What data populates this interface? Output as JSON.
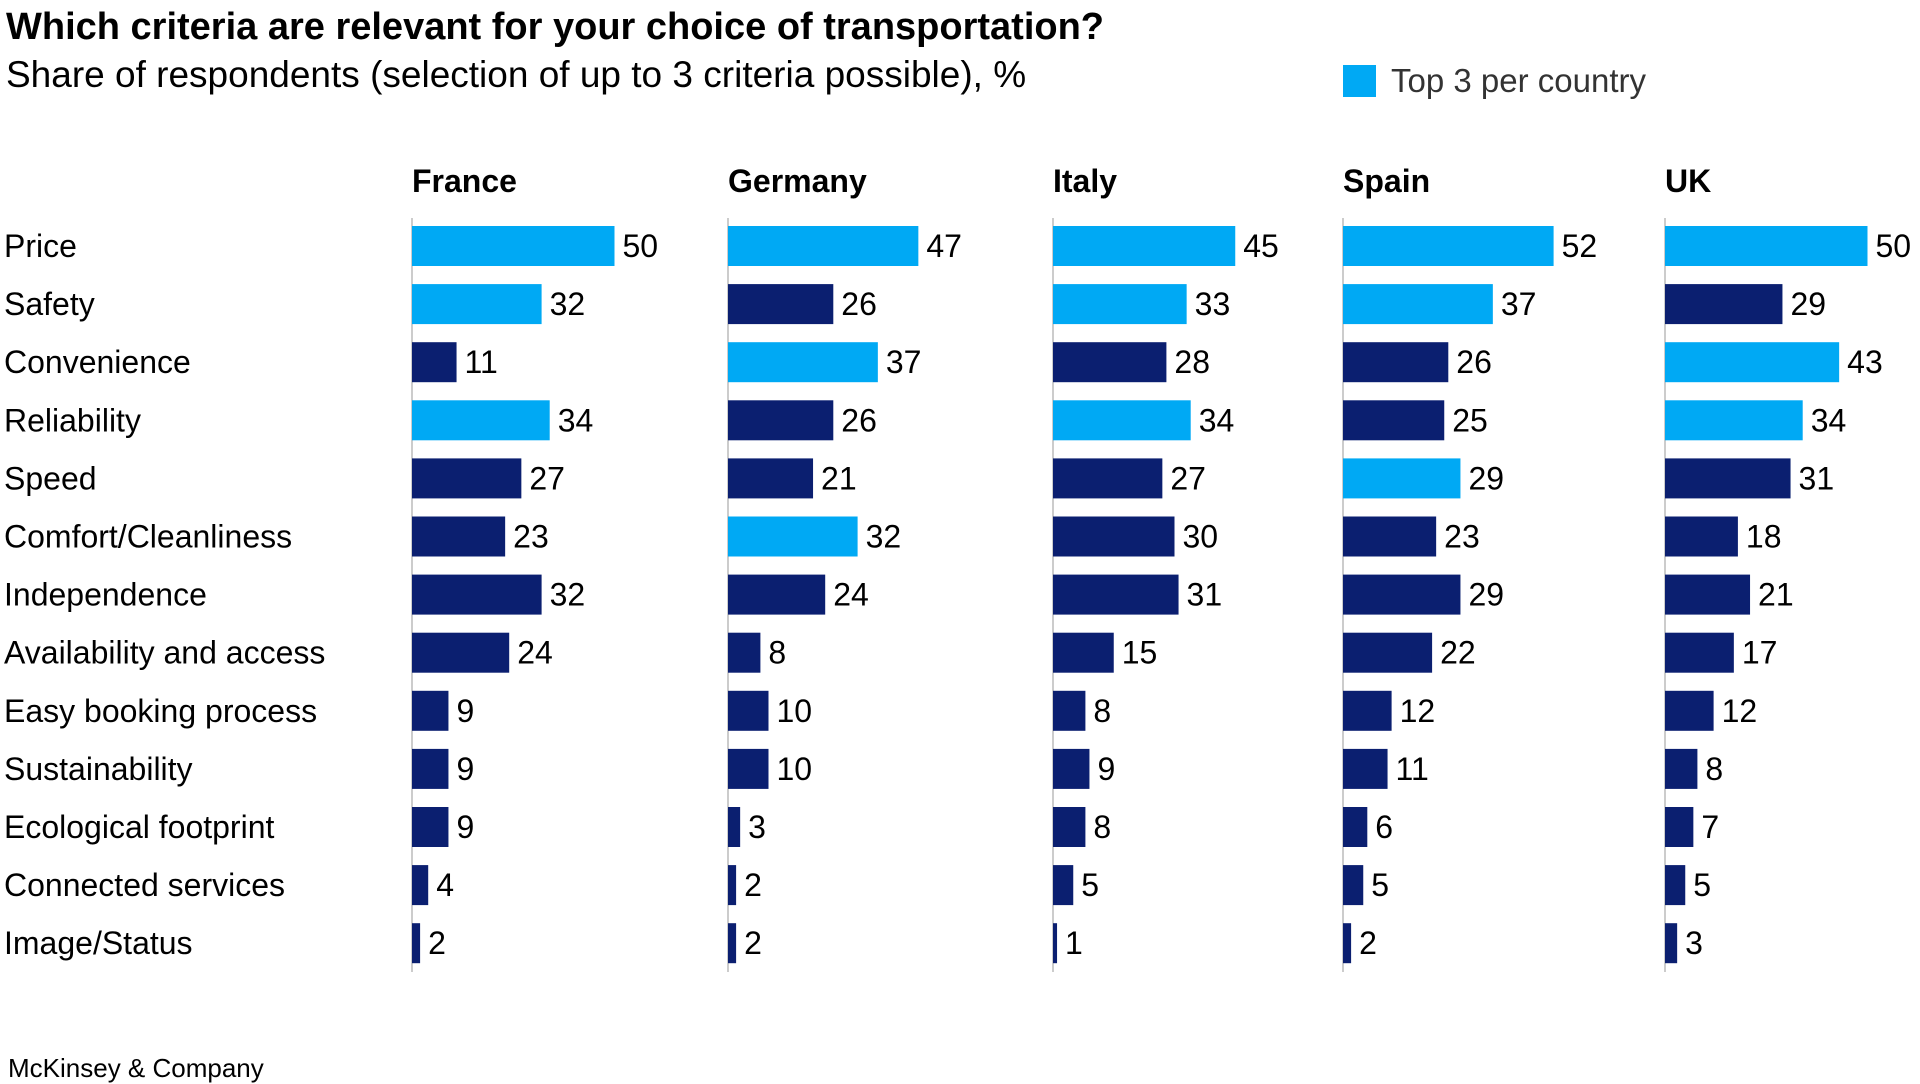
{
  "title": "Which criteria are relevant for your choice of transportation?",
  "subtitle": "Share of respondents (selection of up to 3 criteria possible), %",
  "legend": {
    "label": "Top 3 per country"
  },
  "footer": {
    "brand": "McKinsey & Company"
  },
  "colors": {
    "top3": "#00A9F4",
    "other": "#0B1F70",
    "axis": "#BBBBBB",
    "text": "#000000"
  },
  "chart_data": {
    "type": "bar",
    "orientation": "horizontal",
    "title": "Which criteria are relevant for your choice of transportation?",
    "subtitle": "Share of respondents (selection of up to 3 criteria possible), %",
    "categories": [
      "Price",
      "Safety",
      "Convenience",
      "Reliability",
      "Speed",
      "Comfort/Cleanliness",
      "Independence",
      "Availability and access",
      "Easy booking process",
      "Sustainability",
      "Ecological footprint",
      "Connected services",
      "Image/Status"
    ],
    "series": [
      {
        "name": "France",
        "values": [
          50,
          32,
          11,
          34,
          27,
          23,
          32,
          24,
          9,
          9,
          9,
          4,
          2
        ],
        "top3": [
          true,
          true,
          false,
          true,
          false,
          false,
          false,
          false,
          false,
          false,
          false,
          false,
          false
        ]
      },
      {
        "name": "Germany",
        "values": [
          47,
          26,
          37,
          26,
          21,
          32,
          24,
          8,
          10,
          10,
          3,
          2,
          2
        ],
        "top3": [
          true,
          false,
          true,
          false,
          false,
          true,
          false,
          false,
          false,
          false,
          false,
          false,
          false
        ]
      },
      {
        "name": "Italy",
        "values": [
          45,
          33,
          28,
          34,
          27,
          30,
          31,
          15,
          8,
          9,
          8,
          5,
          1
        ],
        "top3": [
          true,
          true,
          false,
          true,
          false,
          false,
          false,
          false,
          false,
          false,
          false,
          false,
          false
        ]
      },
      {
        "name": "Spain",
        "values": [
          52,
          37,
          26,
          25,
          29,
          23,
          29,
          22,
          12,
          11,
          6,
          5,
          2
        ],
        "top3": [
          true,
          true,
          false,
          false,
          true,
          false,
          false,
          false,
          false,
          false,
          false,
          false,
          false
        ]
      },
      {
        "name": "UK",
        "values": [
          50,
          29,
          43,
          34,
          31,
          18,
          21,
          17,
          12,
          8,
          7,
          5,
          3
        ],
        "top3": [
          true,
          false,
          true,
          true,
          false,
          false,
          false,
          false,
          false,
          false,
          false,
          false,
          false
        ]
      }
    ],
    "xlim": [
      0,
      60
    ],
    "grid": false,
    "legend_position": "top-right"
  }
}
